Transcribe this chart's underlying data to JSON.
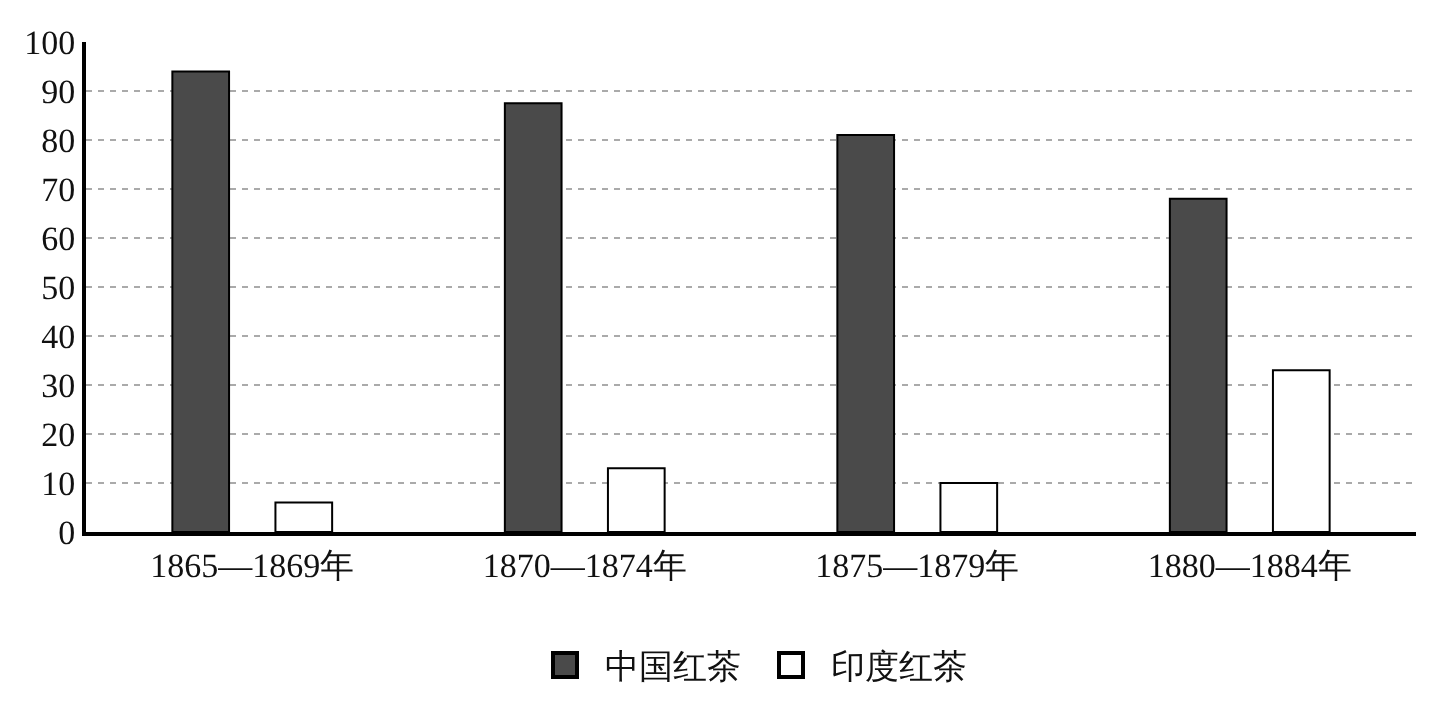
{
  "chart_data": {
    "type": "bar",
    "categories": [
      "1865—1869年",
      "1870—1874年",
      "1875—1879年",
      "1880—1884年"
    ],
    "series": [
      {
        "name": "中国红茶",
        "color": "#4a4a4a",
        "values": [
          94,
          87.5,
          81,
          68
        ]
      },
      {
        "name": "印度红茶",
        "color": "#ffffff",
        "values": [
          6,
          13,
          10,
          33
        ]
      }
    ],
    "ylim": [
      0,
      100
    ],
    "yticks": [
      0,
      10,
      20,
      30,
      40,
      50,
      60,
      70,
      80,
      90,
      100
    ],
    "grid": "y",
    "legend": "bottom"
  }
}
